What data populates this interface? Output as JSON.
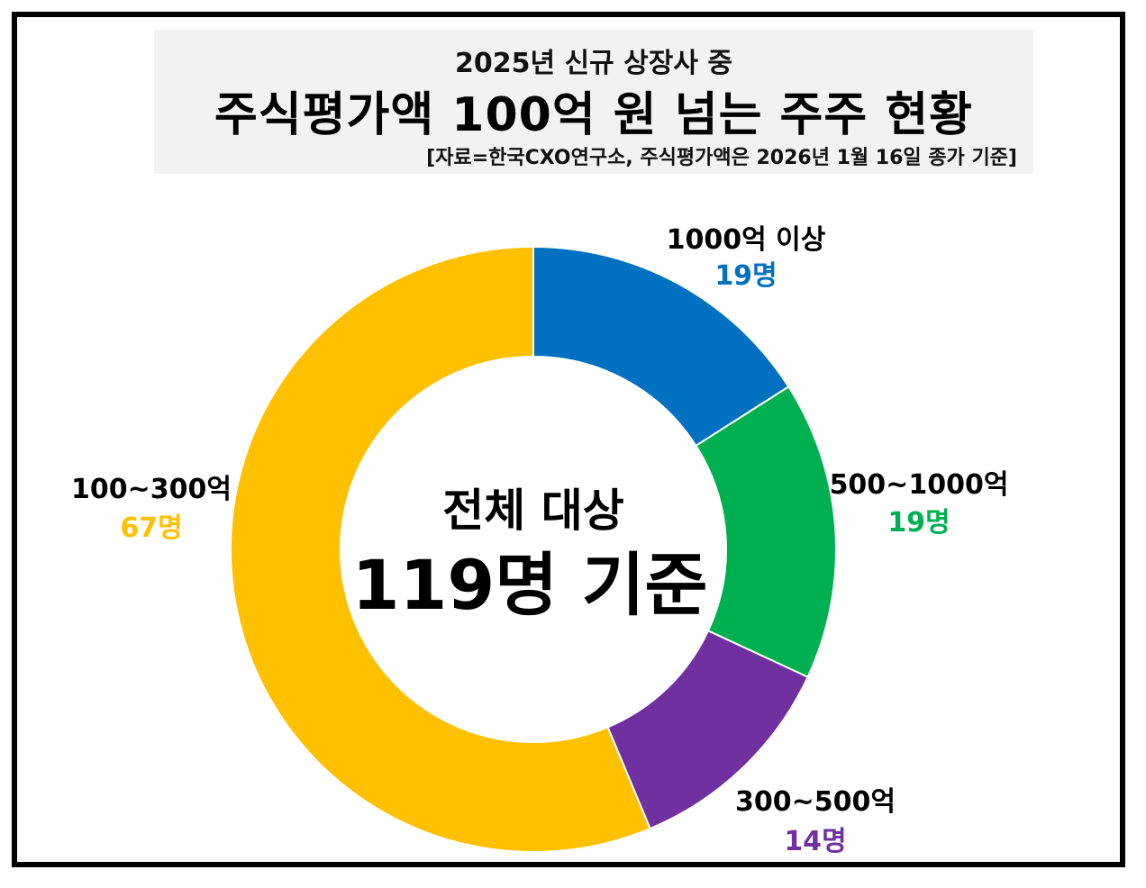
{
  "header": {
    "subtitle": "2025년 신규 상장사 중",
    "title": "주식평가액 100억 원 넘는 주주 현황",
    "source": "[자료=한국CXO연구소, 주식평가액은 2026년 1월 16일 종가 기준]"
  },
  "center": {
    "line1": "전체 대상",
    "line2": "119명 기준"
  },
  "chart_data": {
    "type": "pie",
    "title": "주식평가액 100억 원 넘는 주주 현황",
    "total": 119,
    "categories": [
      "1000억 이상",
      "500~1000억",
      "300~500억",
      "100~300억"
    ],
    "values": [
      19,
      19,
      14,
      67
    ],
    "value_labels": [
      "19명",
      "19명",
      "14명",
      "67명"
    ],
    "colors": [
      "#0070c0",
      "#00b050",
      "#7030a0",
      "#ffc000"
    ]
  }
}
